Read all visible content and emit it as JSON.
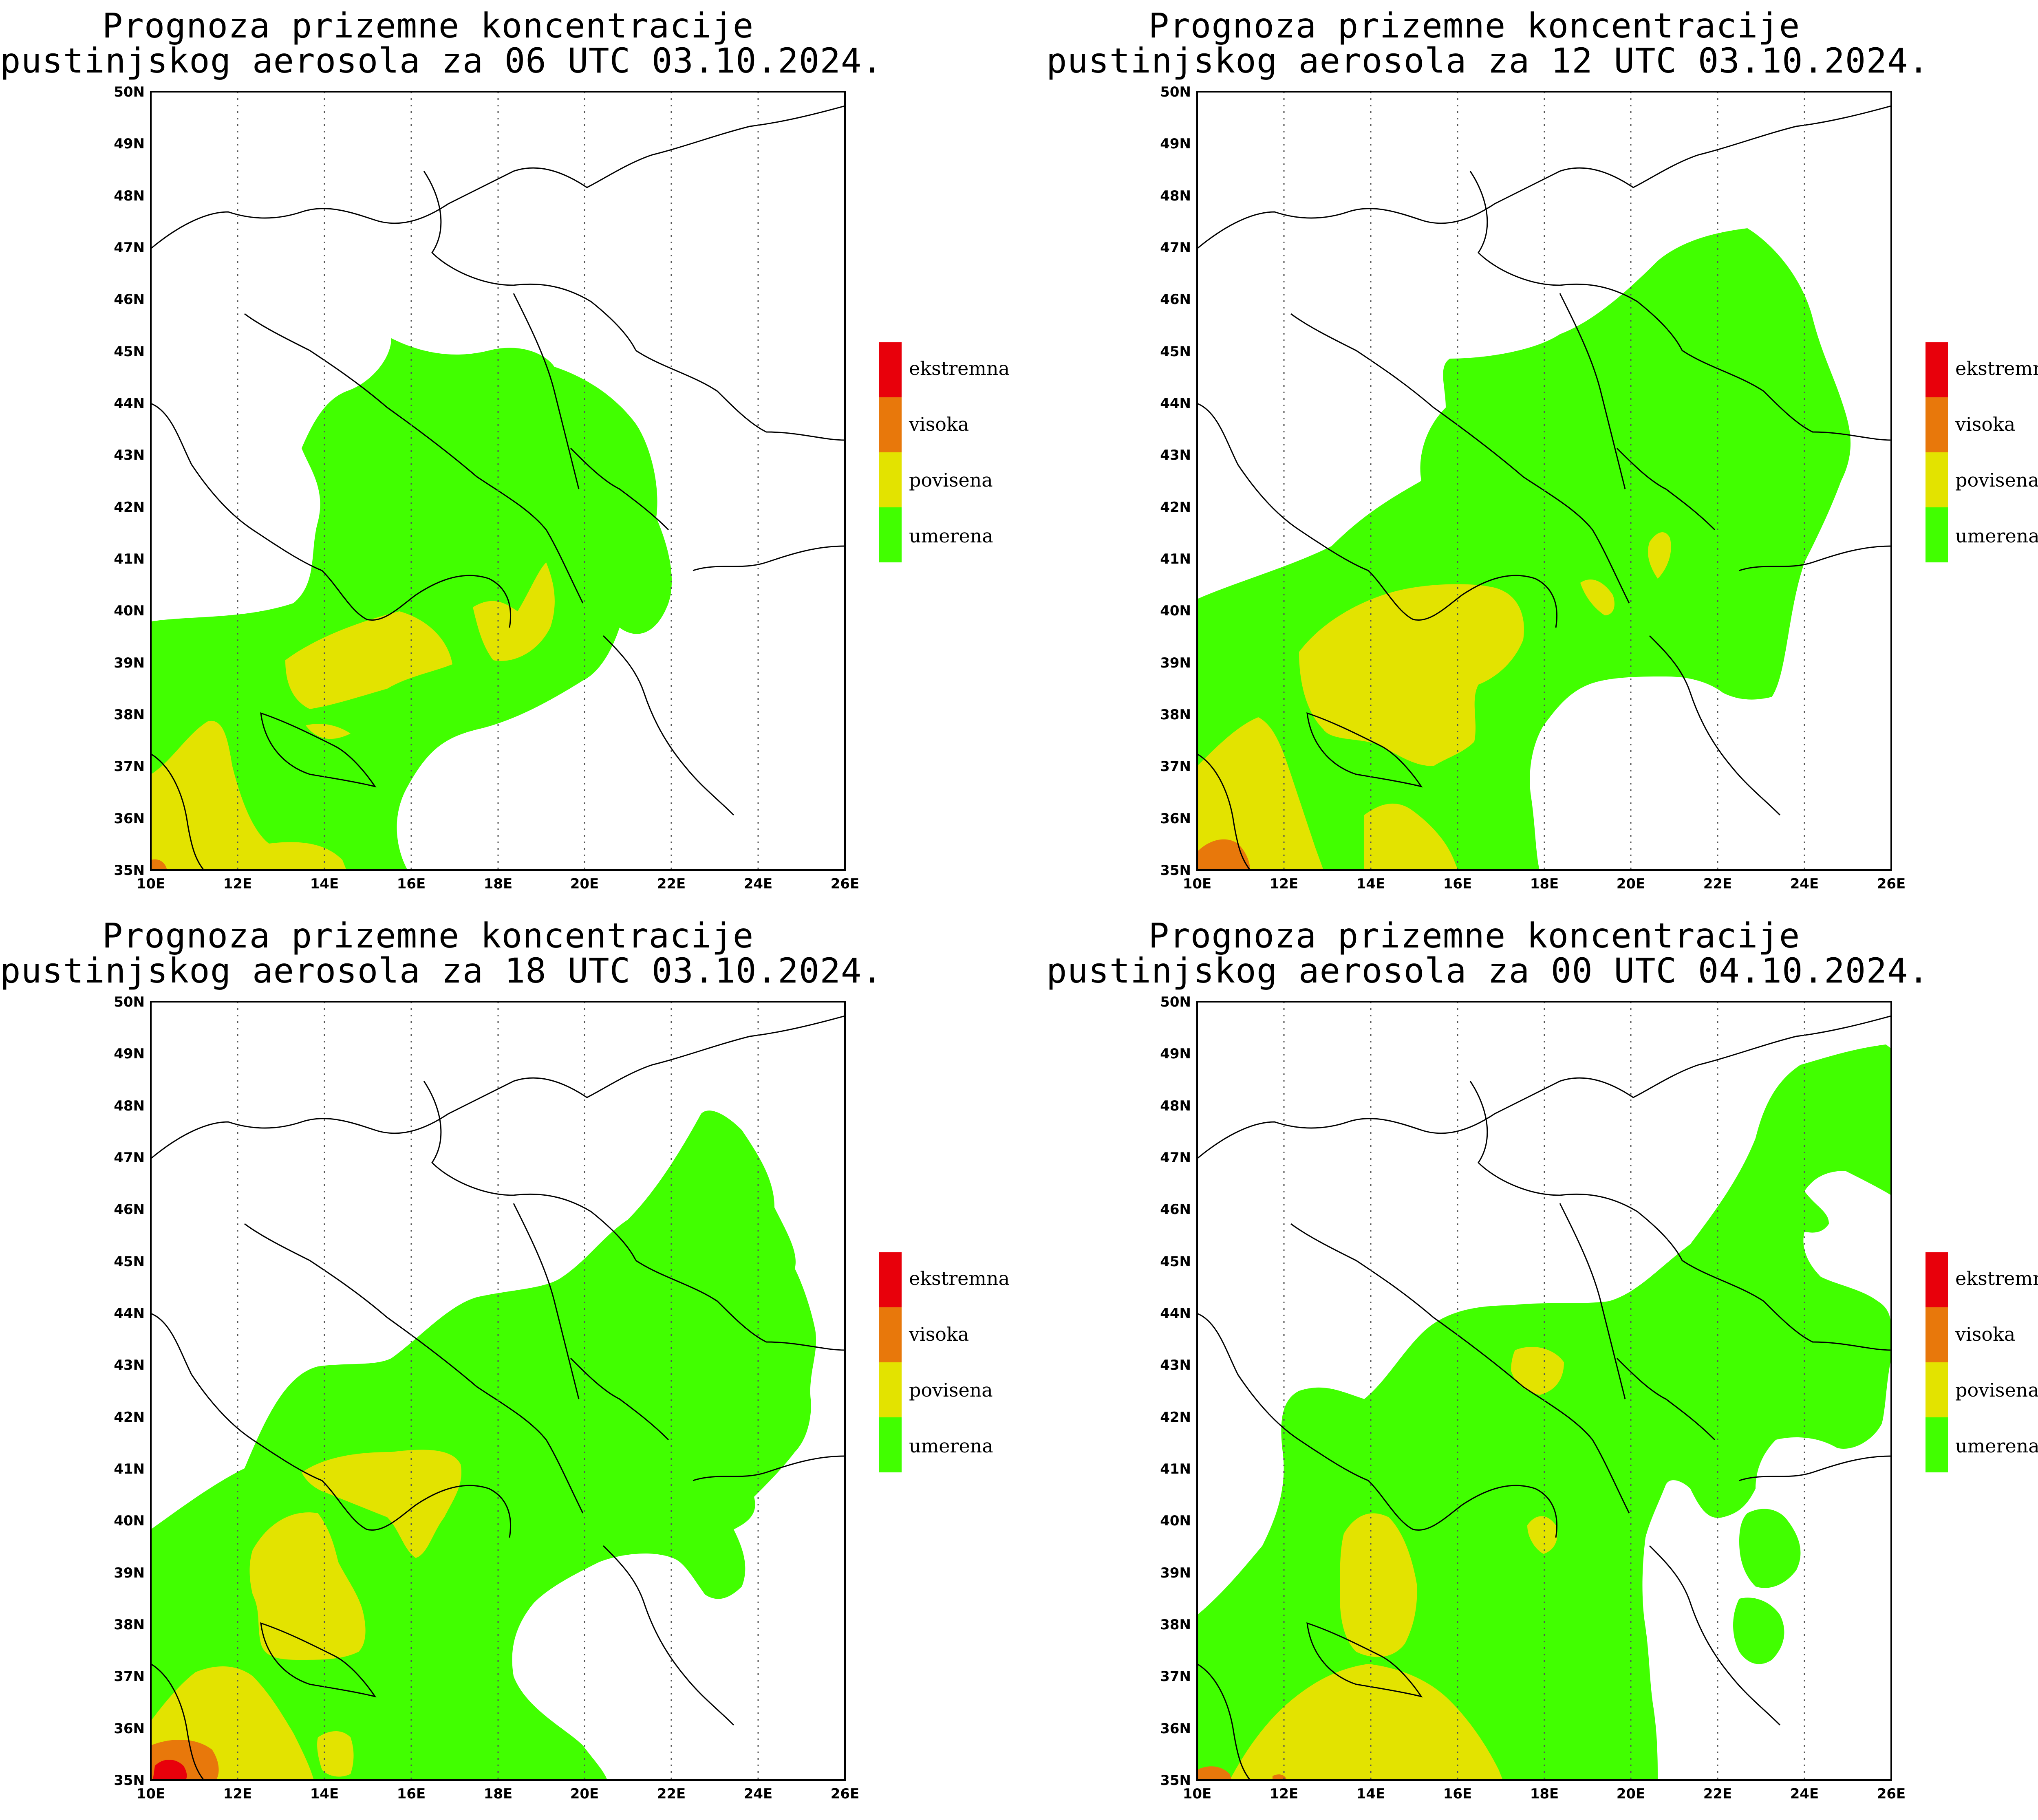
{
  "panels": [
    {
      "title_line1": "Prognoza prizemne koncentracije",
      "title_line2": "pustinjskog aerosola za 06 UTC 03.10.2024."
    },
    {
      "title_line1": "Prognoza prizemne koncentracije",
      "title_line2": "pustinjskog aerosola za 12 UTC 03.10.2024."
    },
    {
      "title_line1": "Prognoza prizemne koncentracije",
      "title_line2": "pustinjskog aerosola za 18 UTC 03.10.2024."
    },
    {
      "title_line1": "Prognoza prizemne koncentracije",
      "title_line2": "pustinjskog aerosola za 00 UTC 04.10.2024."
    }
  ],
  "legend": [
    {
      "label": "ekstremna",
      "color": "#e8000b"
    },
    {
      "label": "visoka",
      "color": "#e8780b"
    },
    {
      "label": "povisena",
      "color": "#e3e300"
    },
    {
      "label": "umerena",
      "color": "#41ff00"
    }
  ],
  "lat_ticks": [
    "50N",
    "49N",
    "48N",
    "47N",
    "46N",
    "45N",
    "44N",
    "43N",
    "42N",
    "41N",
    "40N",
    "39N",
    "38N",
    "37N",
    "36N",
    "35N"
  ],
  "lon_ticks": [
    "10E",
    "12E",
    "14E",
    "16E",
    "18E",
    "20E",
    "22E",
    "24E",
    "26E"
  ],
  "colors": {
    "umerena": "#41ff00",
    "povisena": "#e3e300",
    "visoka": "#e8780b",
    "ekstremna": "#e8000b"
  }
}
